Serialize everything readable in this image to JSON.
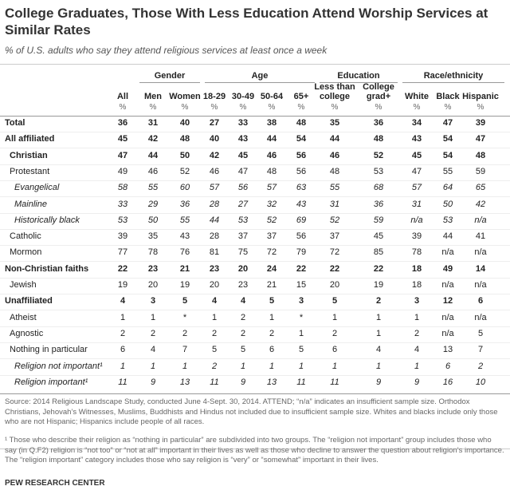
{
  "header": {
    "title": "College Graduates, Those With Less Education Attend Worship Services at Similar Rates",
    "subtitle": "% of U.S. adults who say they attend religious services at least once a week"
  },
  "table": {
    "groups": [
      "Gender",
      "Age",
      "Education",
      "Race/ethnicity"
    ],
    "columns": [
      "All",
      "Men",
      "Women",
      "18-29",
      "30-49",
      "50-64",
      "65+",
      "Less than college",
      "College grad+",
      "White",
      "Black",
      "Hispanic"
    ],
    "units": [
      "%",
      "%",
      "%",
      "%",
      "%",
      "%",
      "%",
      "%",
      "%",
      "%",
      "%",
      "%"
    ],
    "rows": [
      {
        "label": "Total",
        "values": [
          36,
          31,
          40,
          27,
          33,
          38,
          48,
          35,
          36,
          34,
          47,
          39
        ]
      },
      {
        "label": "All affiliated",
        "values": [
          45,
          42,
          48,
          40,
          43,
          44,
          54,
          44,
          48,
          43,
          54,
          47
        ]
      },
      {
        "label": "Christian",
        "values": [
          47,
          44,
          50,
          42,
          45,
          46,
          56,
          46,
          52,
          45,
          54,
          48
        ]
      },
      {
        "label": "Protestant",
        "values": [
          49,
          46,
          52,
          46,
          47,
          48,
          56,
          48,
          53,
          47,
          55,
          59
        ]
      },
      {
        "label": "Evangelical",
        "values": [
          58,
          55,
          60,
          57,
          56,
          57,
          63,
          55,
          68,
          57,
          64,
          65
        ]
      },
      {
        "label": "Mainline",
        "values": [
          33,
          29,
          36,
          28,
          27,
          32,
          43,
          31,
          36,
          31,
          50,
          42
        ]
      },
      {
        "label": "Historically black",
        "values": [
          53,
          50,
          55,
          44,
          53,
          52,
          69,
          52,
          59,
          "n/a",
          53,
          "n/a"
        ]
      },
      {
        "label": "Catholic",
        "values": [
          39,
          35,
          43,
          28,
          37,
          37,
          56,
          37,
          45,
          39,
          44,
          41
        ]
      },
      {
        "label": "Mormon",
        "values": [
          77,
          78,
          76,
          81,
          75,
          72,
          79,
          72,
          85,
          78,
          "n/a",
          "n/a"
        ]
      },
      {
        "label": "Non-Christian faiths",
        "values": [
          22,
          23,
          21,
          23,
          20,
          24,
          22,
          22,
          22,
          18,
          49,
          14
        ]
      },
      {
        "label": "Jewish",
        "values": [
          19,
          20,
          19,
          20,
          23,
          21,
          15,
          20,
          19,
          18,
          "n/a",
          "n/a"
        ]
      },
      {
        "label": "Unaffiliated",
        "values": [
          4,
          3,
          5,
          4,
          4,
          5,
          3,
          5,
          2,
          3,
          12,
          6
        ]
      },
      {
        "label": "Atheist",
        "values": [
          1,
          1,
          "*",
          1,
          2,
          1,
          "*",
          1,
          1,
          1,
          "n/a",
          "n/a"
        ]
      },
      {
        "label": "Agnostic",
        "values": [
          2,
          2,
          2,
          2,
          2,
          2,
          1,
          2,
          1,
          2,
          "n/a",
          5
        ]
      },
      {
        "label": "Nothing in particular",
        "values": [
          6,
          4,
          7,
          5,
          5,
          6,
          5,
          6,
          4,
          4,
          13,
          7
        ]
      },
      {
        "label": "Religion not important¹",
        "values": [
          1,
          1,
          1,
          2,
          1,
          1,
          1,
          1,
          1,
          1,
          6,
          2
        ]
      },
      {
        "label": "Religion important¹",
        "values": [
          11,
          9,
          13,
          11,
          9,
          13,
          11,
          11,
          9,
          9,
          16,
          10
        ]
      }
    ]
  },
  "notes": {
    "source": "Source: 2014 Religious Landscape Study, conducted June 4-Sept. 30, 2014. ATTEND; “n/a” indicates an insufficient sample size. Orthodox Christians, Jehovah’s Witnesses, Muslims, Buddhists and Hindus not included due to insufficient sample size. Whites and blacks include only those who are not Hispanic; Hispanics include people of all races.",
    "footnote": "¹ Those who describe their religion as “nothing in particular” are subdivided into two groups. The “religion not important” group includes those who say (in Q.F2) religion is “not too” or “not at all” important in their lives as well as those who decline to answer the question about religion’s importance. The “religion important” category includes those who say religion is “very” or “somewhat” important in their lives.",
    "credit": "PEW RESEARCH CENTER"
  }
}
